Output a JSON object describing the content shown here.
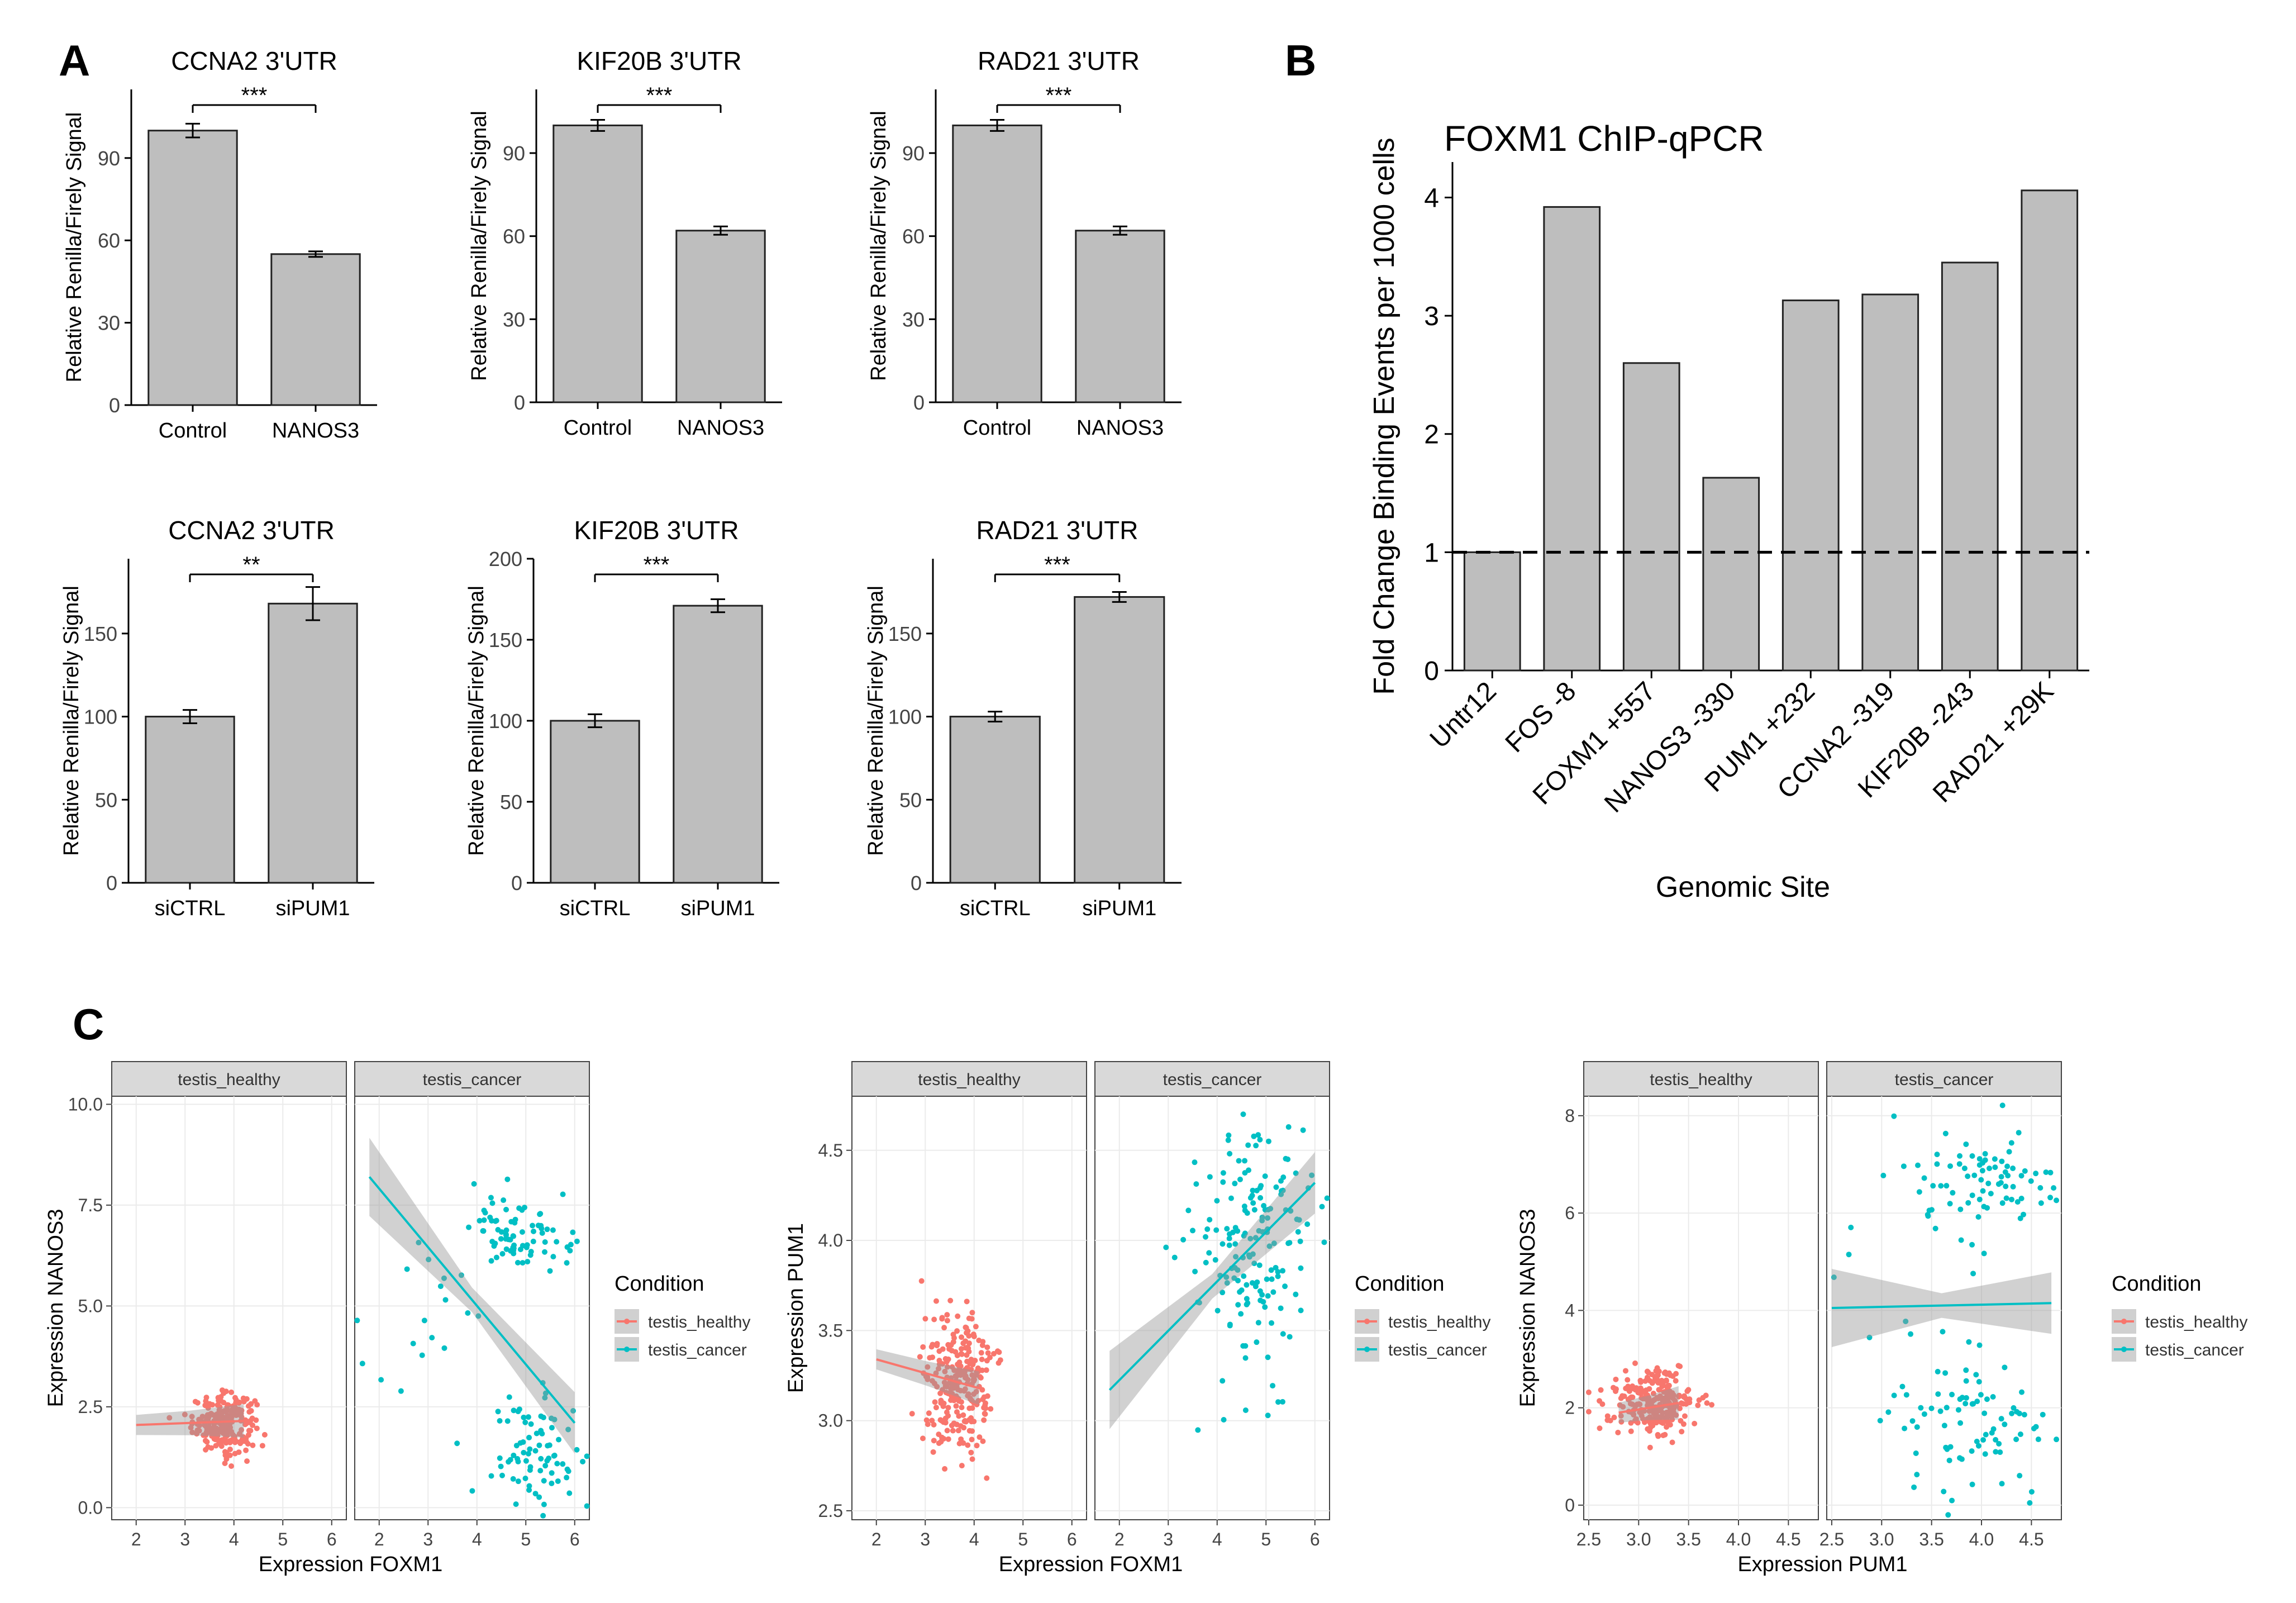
{
  "panel_labels": {
    "A": "A",
    "B": "B",
    "C": "C"
  },
  "colors": {
    "bar_fill": "#bebebe",
    "healthy": "#f8766d",
    "cancel": "#00bfc4",
    "strip": "#d9d9d9",
    "panel_bg": "#ffffff",
    "grid": "#ebebeb"
  },
  "chart_data": [
    {
      "id": "A1",
      "type": "bar",
      "title": "CCNA2 3'UTR",
      "ylabel": "Relative Renilla/Firely Signal",
      "xlabel": "",
      "categories": [
        "Control",
        "NANOS3"
      ],
      "values": [
        100,
        55
      ],
      "errors": [
        2.5,
        1
      ],
      "ylim": [
        0,
        115
      ],
      "yticks": [
        0,
        30,
        60,
        90
      ],
      "significance": "***"
    },
    {
      "id": "A2",
      "type": "bar",
      "title": "KIF20B 3'UTR",
      "ylabel": "Relative Renilla/Firely Signal",
      "xlabel": "",
      "categories": [
        "Control",
        "NANOS3"
      ],
      "values": [
        100,
        62
      ],
      "errors": [
        2,
        1.5
      ],
      "ylim": [
        0,
        113
      ],
      "yticks": [
        0,
        30,
        60,
        90
      ],
      "significance": "***"
    },
    {
      "id": "A3",
      "type": "bar",
      "title": "RAD21 3'UTR",
      "ylabel": "Relative Renilla/Firely Signal",
      "xlabel": "",
      "categories": [
        "Control",
        "NANOS3"
      ],
      "values": [
        100,
        62
      ],
      "errors": [
        2,
        1.5
      ],
      "ylim": [
        0,
        113
      ],
      "yticks": [
        0,
        30,
        60,
        90
      ],
      "significance": "***"
    },
    {
      "id": "A4",
      "type": "bar",
      "title": "CCNA2 3'UTR",
      "ylabel": "Relative Renilla/Firely Signal",
      "xlabel": "",
      "categories": [
        "siCTRL",
        "siPUM1"
      ],
      "values": [
        100,
        168
      ],
      "errors": [
        4,
        10
      ],
      "ylim": [
        0,
        195
      ],
      "yticks": [
        0,
        50,
        100,
        150
      ],
      "significance": "**"
    },
    {
      "id": "A5",
      "type": "bar",
      "title": "KIF20B 3'UTR",
      "ylabel": "Relative Renilla/Firely Signal",
      "xlabel": "",
      "categories": [
        "siCTRL",
        "siPUM1"
      ],
      "values": [
        100,
        171
      ],
      "errors": [
        4,
        4
      ],
      "ylim": [
        0,
        200
      ],
      "yticks": [
        0,
        50,
        100,
        150,
        200
      ],
      "significance": "***"
    },
    {
      "id": "A6",
      "type": "bar",
      "title": "RAD21 3'UTR",
      "ylabel": "Relative Renilla/Firely Signal",
      "xlabel": "",
      "categories": [
        "siCTRL",
        "siPUM1"
      ],
      "values": [
        100,
        172
      ],
      "errors": [
        3,
        3
      ],
      "ylim": [
        0,
        195
      ],
      "yticks": [
        0,
        50,
        100,
        150
      ],
      "significance": "***"
    },
    {
      "id": "B",
      "type": "bar",
      "title": "FOXM1 ChIP-qPCR",
      "ylabel": "Fold Change Binding Events per 1000 cells",
      "xlabel": "Genomic Site",
      "categories": [
        "Untr12",
        "FOS -8",
        "FOXM1 +557",
        "NANOS3 -330",
        "PUM1 +232",
        "CCNA2 -319",
        "KIF20B -243",
        "RAD21 +29K"
      ],
      "values": [
        1.0,
        3.92,
        2.6,
        1.63,
        3.13,
        3.18,
        3.45,
        4.06
      ],
      "ylim": [
        0,
        4.3
      ],
      "yticks": [
        0,
        1,
        2,
        3,
        4
      ],
      "reference_line": 1
    },
    {
      "id": "C1",
      "type": "scatter",
      "xlabel": "Expression FOXM1",
      "ylabel": "Expression NANOS3",
      "facets": [
        "testis_healthy",
        "testis_cancer"
      ],
      "xlim": [
        1.5,
        6.3
      ],
      "ylim": [
        -0.3,
        10.2
      ],
      "xticks": [
        2,
        3,
        4,
        5,
        6
      ],
      "yticks": [
        0.0,
        2.5,
        5.0,
        7.5,
        10.0
      ],
      "ytick_labels": [
        "0.0",
        "2.5",
        "5.0",
        "7.5",
        "10.0"
      ],
      "legend": {
        "title": "Condition",
        "entries": [
          "testis_healthy",
          "testis_cancer"
        ]
      },
      "series": [
        {
          "name": "testis_healthy",
          "cluster": {
            "n": 240,
            "cx": 3.8,
            "cy": 2.1,
            "sx": 0.32,
            "sy": 0.35
          },
          "fit": {
            "x": [
              2.0,
              4.2
            ],
            "y": [
              2.05,
              2.15
            ]
          }
        },
        {
          "name": "testis_cancer",
          "clusters": [
            {
              "n": 80,
              "cx": 4.9,
              "cy": 6.8,
              "sx": 0.5,
              "sy": 0.45
            },
            {
              "n": 80,
              "cx": 5.2,
              "cy": 1.3,
              "sx": 0.45,
              "sy": 0.7
            },
            {
              "n": 20,
              "cx": 3.0,
              "cy": 4.5,
              "sx": 0.9,
              "sy": 1.5
            }
          ],
          "fit": {
            "x": [
              1.8,
              6.0
            ],
            "y": [
              8.2,
              2.1
            ]
          }
        }
      ]
    },
    {
      "id": "C2",
      "type": "scatter",
      "xlabel": "Expression FOXM1",
      "ylabel": "Expression PUM1",
      "facets": [
        "testis_healthy",
        "testis_cancer"
      ],
      "xlim": [
        1.5,
        6.3
      ],
      "ylim": [
        2.45,
        4.8
      ],
      "xticks": [
        2,
        3,
        4,
        5,
        6
      ],
      "yticks": [
        2.5,
        3.0,
        3.5,
        4.0,
        4.5
      ],
      "ytick_labels": [
        "2.5",
        "3.0",
        "3.5",
        "4.0",
        "4.5"
      ],
      "legend": {
        "title": "Condition",
        "entries": [
          "testis_healthy",
          "testis_cancer"
        ]
      },
      "series": [
        {
          "name": "testis_healthy",
          "cluster": {
            "n": 260,
            "cx": 3.7,
            "cy": 3.2,
            "sx": 0.35,
            "sy": 0.2
          },
          "fit": {
            "x": [
              2.0,
              4.1
            ],
            "y": [
              3.34,
              3.18
            ]
          }
        },
        {
          "name": "testis_cancer",
          "clusters": [
            {
              "n": 170,
              "cx": 4.7,
              "cy": 3.95,
              "sx": 0.6,
              "sy": 0.35
            }
          ],
          "fit": {
            "x": [
              1.8,
              6.0
            ],
            "y": [
              3.17,
              4.32
            ]
          }
        }
      ]
    },
    {
      "id": "C3",
      "type": "scatter",
      "xlabel": "Expression PUM1",
      "ylabel": "Expression NANOS3",
      "facets": [
        "testis_healthy",
        "testis_cancer"
      ],
      "xlim": [
        2.45,
        4.8
      ],
      "ylim": [
        -0.3,
        8.4
      ],
      "xticks": [
        2.5,
        3.0,
        3.5,
        4.0,
        4.5
      ],
      "yticks": [
        0,
        2,
        4,
        6,
        8
      ],
      "xtick_labels": [
        "2.5",
        "3.0",
        "3.5",
        "4.0",
        "4.5"
      ],
      "ytick_labels": [
        "0",
        "2",
        "4",
        "6",
        "8"
      ],
      "legend": {
        "title": "Condition",
        "entries": [
          "testis_healthy",
          "testis_cancer"
        ]
      },
      "series": [
        {
          "name": "testis_healthy",
          "cluster": {
            "n": 260,
            "cx": 3.15,
            "cy": 2.05,
            "sx": 0.2,
            "sy": 0.35
          },
          "fit": {
            "x": [
              2.8,
              3.4
            ],
            "y": [
              1.9,
              2.1
            ]
          }
        },
        {
          "name": "testis_cancer",
          "clusters": [
            {
              "n": 80,
              "cx": 4.0,
              "cy": 6.6,
              "sx": 0.4,
              "sy": 0.6
            },
            {
              "n": 80,
              "cx": 4.0,
              "cy": 1.7,
              "sx": 0.4,
              "sy": 0.7
            },
            {
              "n": 12,
              "cx": 3.3,
              "cy": 4.2,
              "sx": 0.5,
              "sy": 1.3
            }
          ],
          "fit": {
            "x": [
              2.5,
              4.7
            ],
            "y": [
              4.05,
              4.15
            ]
          }
        }
      ]
    }
  ]
}
